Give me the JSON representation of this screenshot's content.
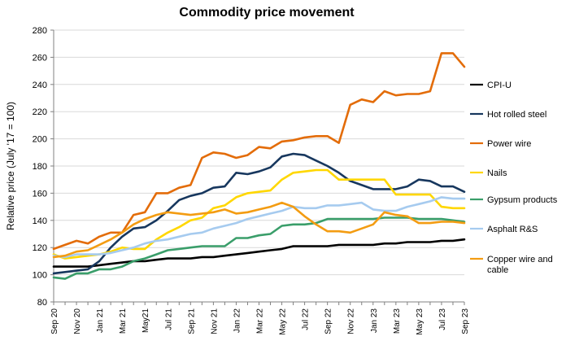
{
  "chart_data": {
    "type": "line",
    "title": "Commodity price movement",
    "ylabel": "Relative price (July '17 = 100)",
    "xlabel": "",
    "ylim": [
      80,
      280
    ],
    "yticks": [
      80,
      100,
      120,
      140,
      160,
      180,
      200,
      220,
      240,
      260,
      280
    ],
    "grid": true,
    "legend_position": "right",
    "x": [
      "Sep 20",
      "Oct 20",
      "Nov 20",
      "Dec 20",
      "Jan 21",
      "Feb 21",
      "Mar 21",
      "Apr 21",
      "May21",
      "Jun 21",
      "Jul 21",
      "Aug 21",
      "Sep 21",
      "Oct 21",
      "Nov 21",
      "Dec 21",
      "Jan 22",
      "Feb 22",
      "Mar 22",
      "Apr 22",
      "May 22",
      "Jun 22",
      "Jul 22",
      "Aug 22",
      "Sep 22",
      "Oct 22",
      "Nov 22",
      "Dec 22",
      "Jan 23",
      "Feb 23",
      "Mar 23",
      "Apr 23",
      "May 23",
      "Jun 23",
      "Jul 23",
      "Aug 23",
      "Sep 23"
    ],
    "x_tick_labels": [
      "Sep 20",
      "Nov 20",
      "Jan 21",
      "Mar 21",
      "May21",
      "Jul 21",
      "Sep 21",
      "Nov 21",
      "Jan 22",
      "Mar 22",
      "May 22",
      "Jul 22",
      "Sep 22",
      "Nov 22",
      "Jan 23",
      "Mar 23",
      "May 23",
      "Jul 23",
      "Sep 23"
    ],
    "series": [
      {
        "name": "CPI-U",
        "color": "#000000",
        "values": [
          106,
          106,
          106,
          106,
          107,
          108,
          109,
          110,
          110,
          111,
          112,
          112,
          112,
          113,
          113,
          114,
          115,
          116,
          117,
          118,
          119,
          121,
          121,
          121,
          121,
          122,
          122,
          122,
          122,
          123,
          123,
          124,
          124,
          124,
          125,
          125,
          126
        ]
      },
      {
        "name": "Hot rolled steel",
        "color": "#17375e",
        "values": [
          101,
          102,
          103,
          104,
          110,
          120,
          128,
          134,
          135,
          140,
          147,
          155,
          158,
          160,
          164,
          165,
          175,
          174,
          176,
          179,
          187,
          189,
          188,
          184,
          180,
          175,
          169,
          166,
          163,
          163,
          163,
          165,
          170,
          169,
          165,
          165,
          161
        ]
      },
      {
        "name": "Power wire",
        "color": "#e36c09",
        "values": [
          119,
          122,
          125,
          123,
          128,
          131,
          131,
          144,
          146,
          160,
          160,
          164,
          166,
          186,
          190,
          189,
          186,
          188,
          194,
          193,
          198,
          199,
          201,
          202,
          202,
          197,
          225,
          229,
          227,
          235,
          232,
          233,
          233,
          235,
          263,
          263,
          253
        ]
      },
      {
        "name": "Nails",
        "color": "#ffd700",
        "values": [
          115,
          112,
          113,
          114,
          115,
          117,
          120,
          119,
          119,
          126,
          131,
          135,
          140,
          142,
          149,
          151,
          157,
          160,
          161,
          162,
          170,
          175,
          176,
          177,
          177,
          170,
          170,
          170,
          170,
          170,
          159,
          159,
          159,
          159,
          150,
          149,
          149
        ]
      },
      {
        "name": "Gypsum products",
        "color": "#3a9e6a",
        "values": [
          98,
          97,
          101,
          101,
          104,
          104,
          106,
          110,
          112,
          115,
          118,
          119,
          120,
          121,
          121,
          121,
          127,
          127,
          129,
          130,
          136,
          137,
          137,
          138,
          141,
          141,
          141,
          141,
          141,
          142,
          142,
          142,
          141,
          141,
          141,
          140,
          139
        ]
      },
      {
        "name": "Asphalt R&S",
        "color": "#a6cbef",
        "values": [
          114,
          113,
          115,
          115,
          115,
          116,
          118,
          120,
          123,
          125,
          126,
          128,
          130,
          131,
          134,
          136,
          138,
          141,
          143,
          145,
          147,
          150,
          149,
          149,
          151,
          151,
          152,
          153,
          148,
          147,
          147,
          150,
          152,
          154,
          157,
          156,
          156
        ]
      },
      {
        "name": "Copper wire and cable",
        "color": "#f39c12",
        "values": [
          113,
          114,
          117,
          118,
          122,
          126,
          131,
          137,
          141,
          144,
          146,
          145,
          144,
          145,
          146,
          148,
          145,
          146,
          148,
          150,
          153,
          150,
          143,
          137,
          132,
          132,
          131,
          134,
          137,
          146,
          144,
          143,
          138,
          138,
          139,
          139,
          138
        ]
      }
    ]
  }
}
